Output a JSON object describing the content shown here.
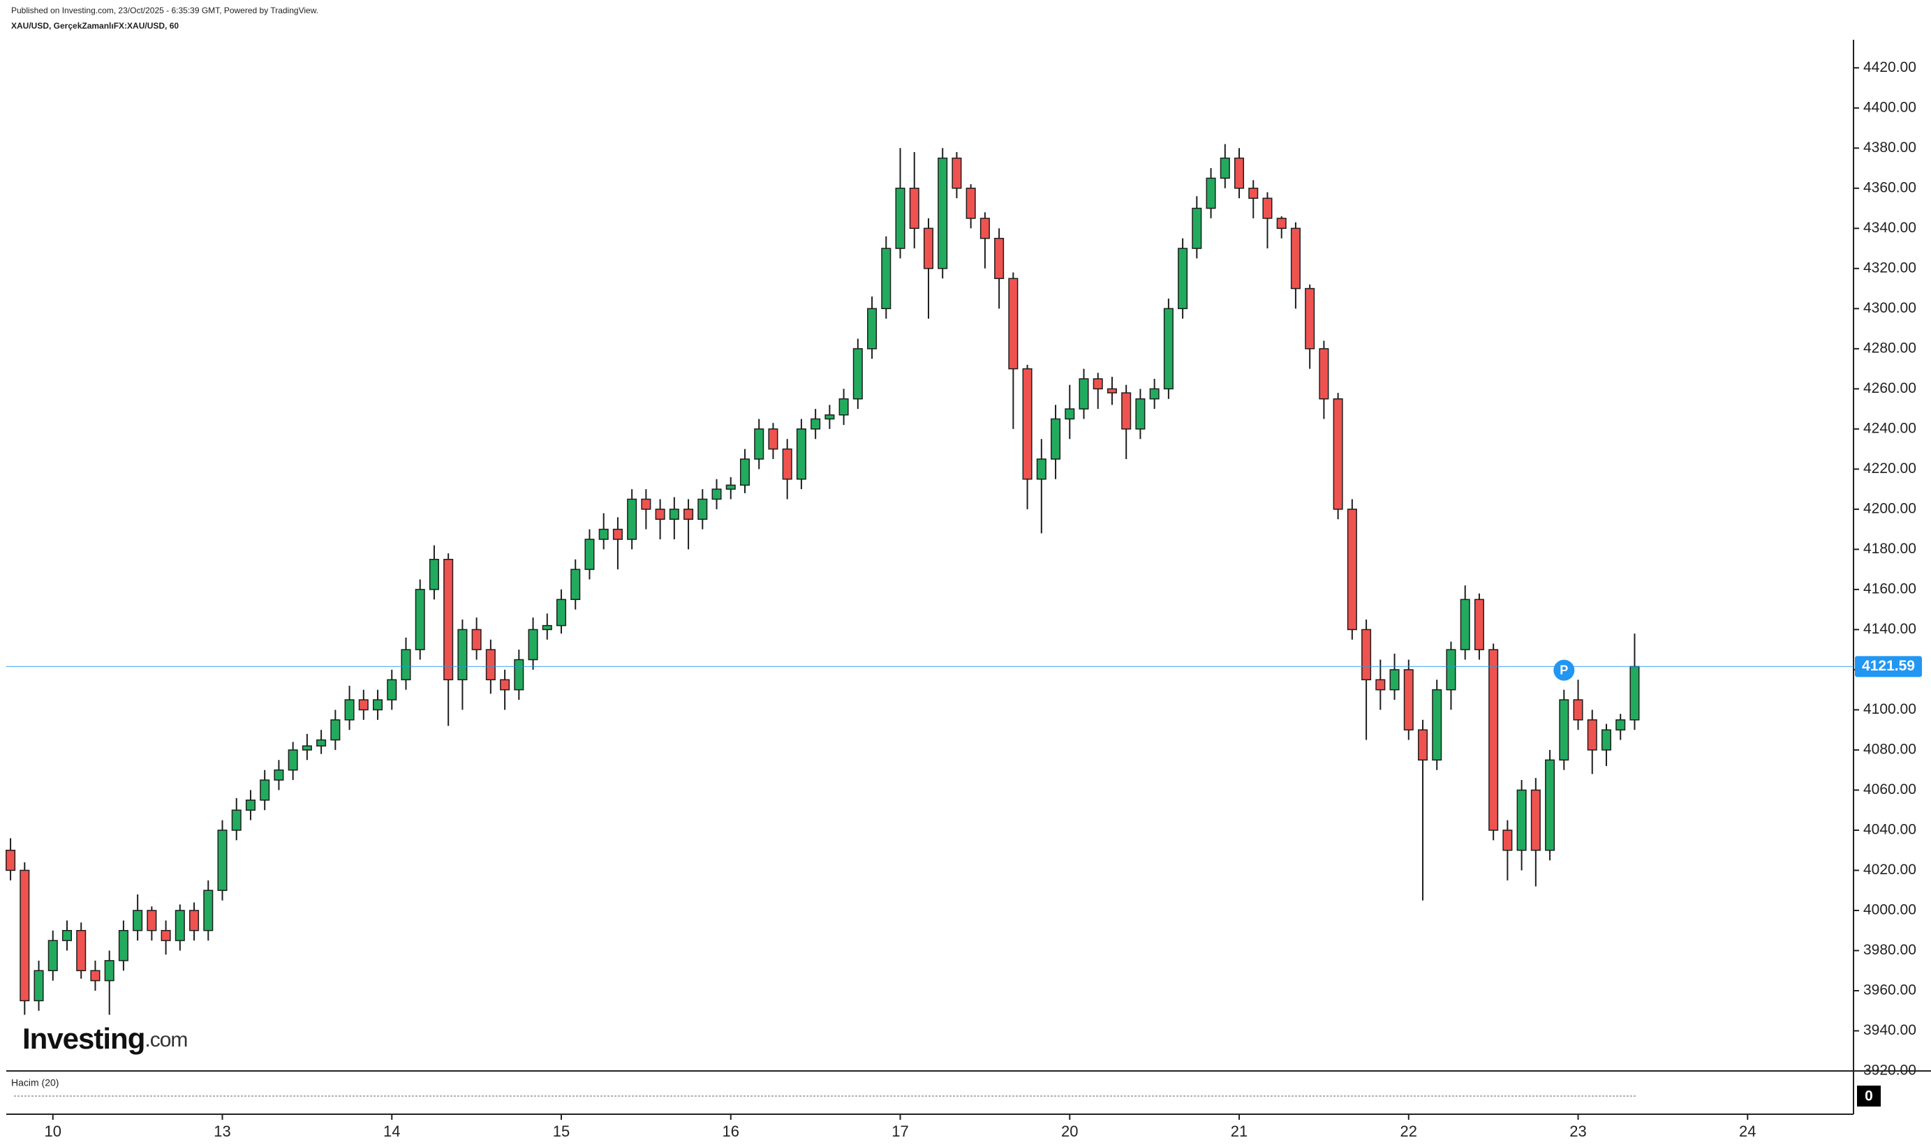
{
  "chart_data": {
    "type": "candlestick",
    "title": "Published on Investing.com, 23/Oct/2025 - 6:35:39 GMT, Powered by TradingView.",
    "subtitle": "XAU/USD, GerçekZamanlıFX:XAU/USD, 60",
    "up_color": "#22ab5e",
    "down_color": "#ef5350",
    "edge_color": "#1e1e1e",
    "open": [
      4030,
      4020,
      3955,
      3970,
      3985,
      3990,
      3970,
      3965,
      3975,
      3990,
      4000,
      3990,
      3985,
      4000,
      3990,
      4010,
      4040,
      4050,
      4055,
      4065,
      4070,
      4080,
      4082,
      4085,
      4095,
      4105,
      4100,
      4105,
      4115,
      4130,
      4160,
      4175,
      4115,
      4140,
      4130,
      4115,
      4110,
      4125,
      4140,
      4142,
      4155,
      4170,
      4185,
      4190,
      4185,
      4205,
      4200,
      4195,
      4200,
      4195,
      4205,
      4210,
      4212,
      4225,
      4240,
      4230,
      4215,
      4240,
      4245,
      4247,
      4255,
      4280,
      4300,
      4330,
      4360,
      4340,
      4320,
      4375,
      4360,
      4345,
      4335,
      4315,
      4270,
      4215,
      4225,
      4245,
      4250,
      4265,
      4260,
      4258,
      4240,
      4255,
      4260,
      4300,
      4330,
      4350,
      4365,
      4375,
      4360,
      4355,
      4345,
      4340,
      4310,
      4280,
      4255,
      4200,
      4140,
      4115,
      4110,
      4120,
      4090,
      4075,
      4110,
      4130,
      4155,
      4130,
      4040,
      4030,
      4060,
      4030,
      4075,
      4105,
      4095,
      4080,
      4090,
      4095
    ],
    "high": [
      4036,
      4024,
      3975,
      3990,
      3995,
      3994,
      3975,
      3980,
      3995,
      4008,
      4002,
      3995,
      4003,
      4004,
      4015,
      4045,
      4056,
      4060,
      4070,
      4075,
      4084,
      4088,
      4090,
      4100,
      4112,
      4110,
      4110,
      4120,
      4136,
      4165,
      4182,
      4178,
      4145,
      4146,
      4135,
      4120,
      4130,
      4146,
      4148,
      4160,
      4175,
      4190,
      4198,
      4196,
      4210,
      4210,
      4205,
      4206,
      4205,
      4210,
      4215,
      4216,
      4230,
      4245,
      4243,
      4235,
      4245,
      4250,
      4252,
      4260,
      4285,
      4306,
      4336,
      4380,
      4378,
      4345,
      4380,
      4378,
      4362,
      4348,
      4340,
      4318,
      4272,
      4235,
      4252,
      4262,
      4270,
      4268,
      4266,
      4262,
      4260,
      4265,
      4305,
      4335,
      4356,
      4370,
      4382,
      4380,
      4364,
      4358,
      4346,
      4343,
      4312,
      4284,
      4258,
      4205,
      4145,
      4125,
      4128,
      4125,
      4095,
      4115,
      4134,
      4162,
      4158,
      4133,
      4045,
      4065,
      4066,
      4080,
      4110,
      4115,
      4100,
      4093,
      4098,
      4138
    ],
    "low": [
      4015,
      3948,
      3950,
      3965,
      3980,
      3966,
      3960,
      3948,
      3970,
      3985,
      3985,
      3978,
      3980,
      3985,
      3985,
      4005,
      4035,
      4045,
      4050,
      4060,
      4065,
      4075,
      4078,
      4080,
      4090,
      4095,
      4095,
      4100,
      4110,
      4125,
      4155,
      4092,
      4100,
      4125,
      4108,
      4100,
      4105,
      4120,
      4135,
      4138,
      4150,
      4165,
      4180,
      4170,
      4180,
      4190,
      4185,
      4185,
      4180,
      4190,
      4200,
      4205,
      4208,
      4220,
      4225,
      4205,
      4210,
      4235,
      4240,
      4242,
      4250,
      4275,
      4295,
      4325,
      4330,
      4295,
      4315,
      4355,
      4340,
      4320,
      4300,
      4240,
      4200,
      4188,
      4215,
      4235,
      4245,
      4250,
      4252,
      4225,
      4235,
      4250,
      4255,
      4295,
      4325,
      4345,
      4360,
      4355,
      4345,
      4330,
      4335,
      4300,
      4270,
      4245,
      4195,
      4135,
      4085,
      4100,
      4105,
      4085,
      4005,
      4070,
      4100,
      4125,
      4125,
      4035,
      4015,
      4020,
      4012,
      4025,
      4070,
      4090,
      4068,
      4072,
      4085,
      4090
    ],
    "close": [
      4020,
      3955,
      3970,
      3985,
      3990,
      3970,
      3965,
      3975,
      3990,
      4000,
      3990,
      3985,
      4000,
      3990,
      4010,
      4040,
      4050,
      4055,
      4065,
      4070,
      4080,
      4082,
      4085,
      4095,
      4105,
      4100,
      4105,
      4115,
      4130,
      4160,
      4175,
      4115,
      4140,
      4130,
      4115,
      4110,
      4125,
      4140,
      4142,
      4155,
      4170,
      4185,
      4190,
      4185,
      4205,
      4200,
      4195,
      4200,
      4195,
      4205,
      4210,
      4212,
      4225,
      4240,
      4230,
      4215,
      4240,
      4245,
      4247,
      4255,
      4280,
      4300,
      4330,
      4360,
      4340,
      4320,
      4375,
      4360,
      4345,
      4335,
      4315,
      4270,
      4215,
      4225,
      4245,
      4250,
      4265,
      4260,
      4258,
      4240,
      4255,
      4260,
      4300,
      4330,
      4350,
      4365,
      4375,
      4360,
      4355,
      4345,
      4340,
      4310,
      4280,
      4255,
      4200,
      4140,
      4115,
      4110,
      4120,
      4090,
      4075,
      4110,
      4130,
      4155,
      4130,
      4040,
      4030,
      4060,
      4030,
      4075,
      4105,
      4095,
      4080,
      4090,
      4095,
      4121.59
    ],
    "xlim": [
      -0.3,
      130.5
    ],
    "xticks": [
      {
        "value": 3,
        "label": "10"
      },
      {
        "value": 15,
        "label": "13"
      },
      {
        "value": 27,
        "label": "14"
      },
      {
        "value": 39,
        "label": "15"
      },
      {
        "value": 51,
        "label": "16"
      },
      {
        "value": 63,
        "label": "17"
      },
      {
        "value": 75,
        "label": "20"
      },
      {
        "value": 87,
        "label": "21"
      },
      {
        "value": 99,
        "label": "22"
      },
      {
        "value": 111,
        "label": "23"
      },
      {
        "value": 123,
        "label": "24"
      }
    ],
    "ylim": [
      3920,
      4434
    ],
    "yticks": [
      {
        "value": 3920,
        "label": "3920.00"
      },
      {
        "value": 3940,
        "label": "3940.00"
      },
      {
        "value": 3960,
        "label": "3960.00"
      },
      {
        "value": 3980,
        "label": "3980.00"
      },
      {
        "value": 4000,
        "label": "4000.00"
      },
      {
        "value": 4020,
        "label": "4020.00"
      },
      {
        "value": 4040,
        "label": "4040.00"
      },
      {
        "value": 4060,
        "label": "4060.00"
      },
      {
        "value": 4080,
        "label": "4080.00"
      },
      {
        "value": 4100,
        "label": "4100.00"
      },
      {
        "value": 4120,
        "label": "4120.00"
      },
      {
        "value": 4140,
        "label": "4140.00"
      },
      {
        "value": 4160,
        "label": "4160.00"
      },
      {
        "value": 4180,
        "label": "4180.00"
      },
      {
        "value": 4200,
        "label": "4200.00"
      },
      {
        "value": 4220,
        "label": "4220.00"
      },
      {
        "value": 4240,
        "label": "4240.00"
      },
      {
        "value": 4260,
        "label": "4260.00"
      },
      {
        "value": 4280,
        "label": "4280.00"
      },
      {
        "value": 4300,
        "label": "4300.00"
      },
      {
        "value": 4320,
        "label": "4320.00"
      },
      {
        "value": 4340,
        "label": "4340.00"
      },
      {
        "value": 4360,
        "label": "4360.00"
      },
      {
        "value": 4380,
        "label": "4380.00"
      },
      {
        "value": 4400,
        "label": "4400.00"
      },
      {
        "value": 4420,
        "label": "4420.00"
      }
    ],
    "price_line": {
      "value": 4121.59,
      "label": "4121.59",
      "color": "#2196f3"
    },
    "marker": "P",
    "volume_label": "Hacim (20)",
    "volume_axis_label": 0,
    "logo": {
      "name": "Investing",
      "suffix": ".com"
    }
  }
}
